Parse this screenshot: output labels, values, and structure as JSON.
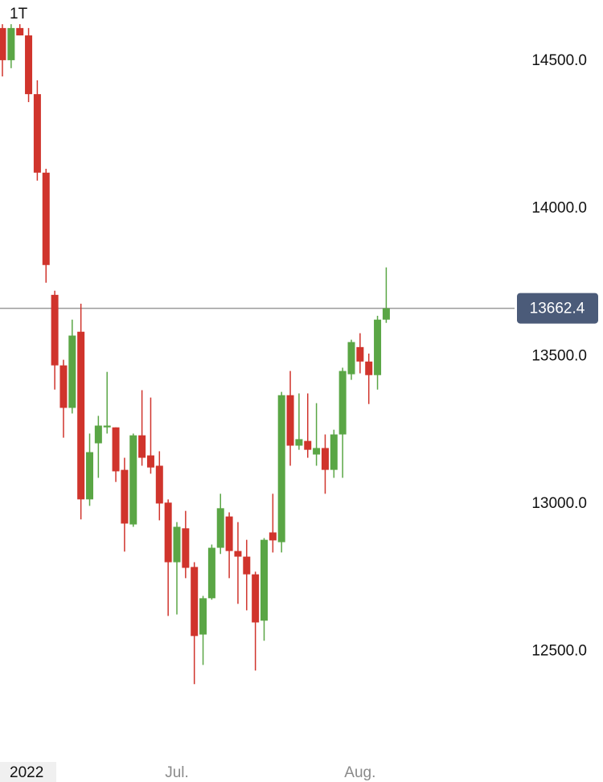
{
  "chart_data": {
    "type": "candlestick",
    "interval": "1T",
    "up_color": "#5aa645",
    "down_color": "#d0342c",
    "ylim": [
      12120,
      14707
    ],
    "yticks": [
      {
        "value": 12500,
        "label": "12500.0"
      },
      {
        "value": 13000,
        "label": "13000.0"
      },
      {
        "value": 13500,
        "label": "13500.0"
      },
      {
        "value": 14000,
        "label": "14000.0"
      },
      {
        "value": 14500,
        "label": "14500.0"
      }
    ],
    "last_price": {
      "value": 13662.4,
      "label": "13662.4"
    },
    "categories": [
      null,
      null,
      null,
      "2022",
      null,
      null,
      null,
      null,
      null,
      null,
      null,
      null,
      null,
      null,
      null,
      null,
      null,
      null,
      null,
      null,
      "Jul.",
      null,
      null,
      null,
      null,
      null,
      null,
      null,
      null,
      null,
      null,
      null,
      null,
      null,
      null,
      null,
      null,
      null,
      null,
      null,
      null,
      "Aug.",
      null,
      null,
      null
    ],
    "open": [
      14612,
      14503,
      14612,
      14587,
      14388,
      14122,
      13708,
      13469,
      13325,
      13583,
      13015,
      13205,
      13259,
      13259,
      13115,
      12930,
      13232,
      13164,
      13129,
      13004,
      12802,
      12917,
      12786,
      12557,
      12680,
      12851,
      12957,
      12840,
      12821,
      12761,
      12604,
      12903,
      12870,
      13368,
      13197,
      13213,
      13167,
      13189,
      13115,
      13235,
      13439,
      13531,
      13482,
      13436,
      13624
    ],
    "high": [
      14625,
      14625,
      14625,
      14612,
      14435,
      14135,
      13722,
      13488,
      13624,
      13678,
      13238,
      13298,
      13447,
      13259,
      13156,
      13238,
      13385,
      13360,
      13178,
      13015,
      12938,
      12976,
      12802,
      12688,
      12862,
      13034,
      12971,
      12938,
      12878,
      12770,
      12884,
      13034,
      13379,
      13450,
      13374,
      13374,
      13341,
      13235,
      13251,
      13461,
      13556,
      13578,
      13509,
      13637,
      13801
    ],
    "low": [
      14448,
      14476,
      14587,
      14361,
      14095,
      13749,
      13387,
      13224,
      13306,
      12947,
      12993,
      13088,
      13238,
      13074,
      12838,
      12922,
      13129,
      13102,
      12944,
      12620,
      12625,
      12748,
      12389,
      12454,
      12675,
      12830,
      12748,
      12661,
      12639,
      12435,
      12536,
      12835,
      12835,
      13129,
      13183,
      13156,
      13129,
      13034,
      13088,
      13088,
      13420,
      13442,
      13338,
      13387,
      13613
    ],
    "close": [
      14503,
      14612,
      14587,
      14388,
      14122,
      13809,
      13469,
      13325,
      13570,
      13015,
      13175,
      13265,
      13265,
      13110,
      12933,
      13232,
      13156,
      13123,
      13001,
      12802,
      12922,
      12783,
      12552,
      12680,
      12851,
      12985,
      12840,
      12821,
      12761,
      12598,
      12878,
      12876,
      13368,
      13197,
      13219,
      13183,
      13189,
      13115,
      13235,
      13450,
      13548,
      13482,
      13436,
      13624,
      13662.4
    ]
  }
}
